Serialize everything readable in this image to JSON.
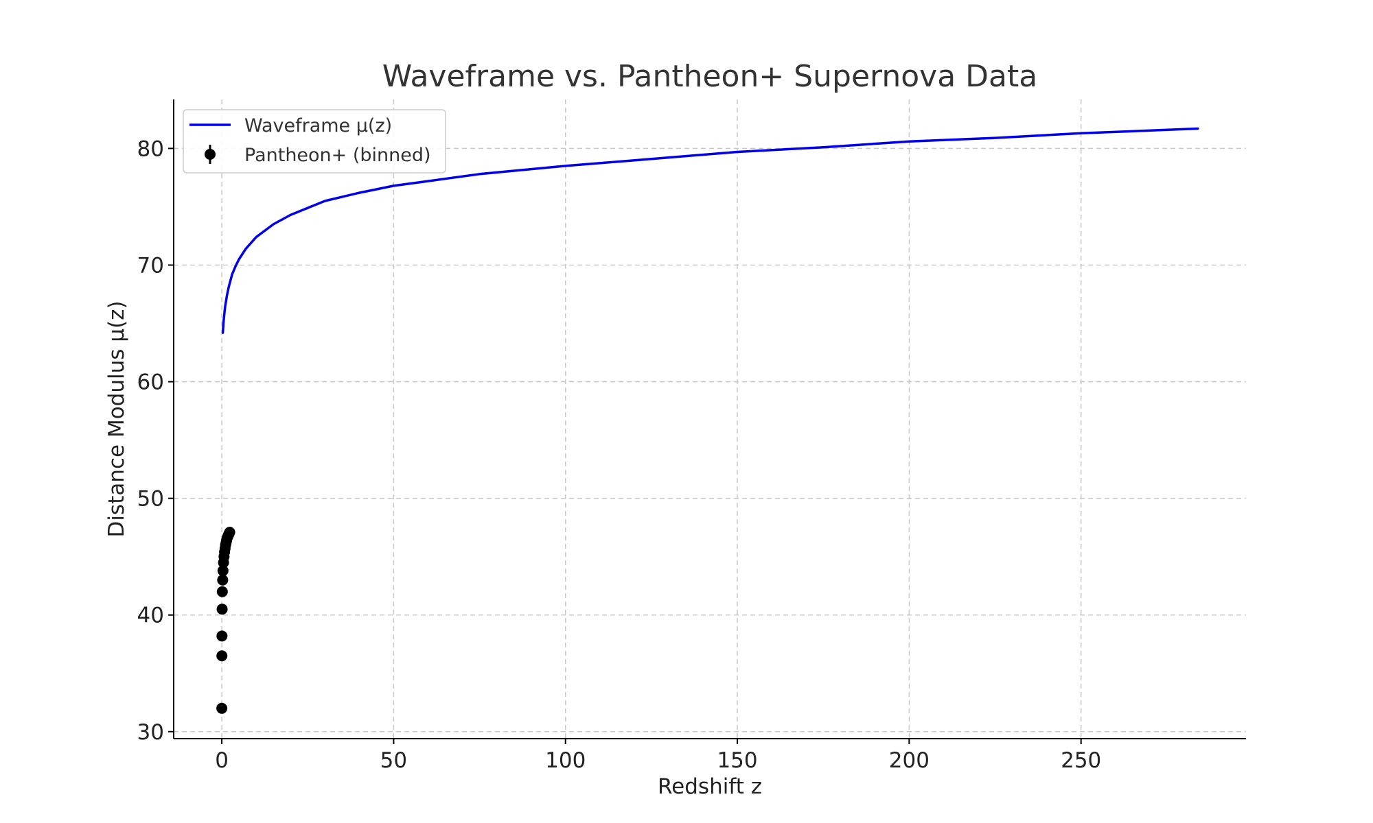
{
  "chart_data": {
    "type": "line",
    "title": "Waveframe vs. Pantheon+ Supernova Data",
    "xlabel": "Redshift z",
    "ylabel": "Distance Modulus μ(z)",
    "xlim": [
      -14,
      298
    ],
    "ylim": [
      29.4,
      84.2
    ],
    "xticks": [
      0,
      50,
      100,
      150,
      200,
      250
    ],
    "yticks": [
      30,
      40,
      50,
      60,
      70,
      80
    ],
    "grid": true,
    "legend_position": "top-left",
    "series": [
      {
        "name": "Waveframe μ(z)",
        "kind": "line",
        "color": "#0000ee",
        "x": [
          0.3,
          0.5,
          0.8,
          1.0,
          1.5,
          2.0,
          3.0,
          4.0,
          5.0,
          7.0,
          10,
          15,
          20,
          30,
          40,
          50,
          60,
          75,
          100,
          125,
          150,
          175,
          200,
          225,
          250,
          284
        ],
        "y": [
          64.2,
          65.1,
          66.0,
          66.5,
          67.4,
          68.1,
          69.2,
          69.9,
          70.5,
          71.4,
          72.4,
          73.5,
          74.3,
          75.5,
          76.2,
          76.8,
          77.2,
          77.8,
          78.5,
          79.1,
          79.7,
          80.1,
          80.6,
          80.9,
          81.3,
          81.7
        ]
      },
      {
        "name": "Pantheon+ (binned)",
        "kind": "errorbar",
        "color": "#000000",
        "x": [
          0.01,
          0.03,
          0.05,
          0.1,
          0.15,
          0.25,
          0.35,
          0.5,
          0.65,
          0.8,
          0.95,
          1.1,
          1.25,
          1.4,
          1.55,
          1.7,
          1.85,
          2.0,
          2.15,
          2.3
        ],
        "y": [
          32.0,
          36.5,
          38.2,
          40.5,
          42.0,
          43.0,
          43.8,
          44.5,
          45.0,
          45.4,
          45.7,
          46.0,
          46.2,
          46.4,
          46.6,
          46.7,
          46.8,
          46.9,
          47.0,
          47.1
        ],
        "yerr": [
          0.1,
          0.1,
          0.1,
          0.1,
          0.1,
          0.1,
          0.1,
          0.1,
          0.1,
          0.1,
          0.1,
          0.1,
          0.1,
          0.1,
          0.1,
          0.1,
          0.1,
          0.1,
          0.1,
          0.1
        ]
      }
    ]
  }
}
